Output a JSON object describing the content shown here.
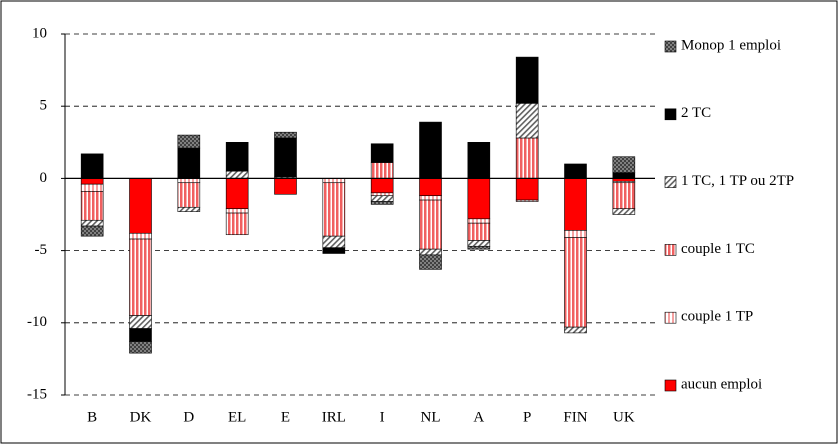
{
  "chart_data": {
    "type": "stacked_bar",
    "categories": [
      "B",
      "DK",
      "D",
      "EL",
      "E",
      "IRL",
      "I",
      "NL",
      "A",
      "P",
      "FIN",
      "UK"
    ],
    "series": [
      {
        "name": "aucun emploi",
        "color": "#ff0000",
        "values": [
          -0.4,
          -3.8,
          0,
          -2.1,
          -1.1,
          0,
          -1.0,
          -1.2,
          -2.8,
          -1.5,
          -3.6,
          -0.2
        ]
      },
      {
        "name": "couple 1 TP",
        "color": "#f4a0a0",
        "values": [
          -0.5,
          -0.4,
          -0.3,
          -0.3,
          0,
          -0.3,
          -0.2,
          -0.3,
          -0.3,
          -0.1,
          -0.5,
          -0.1
        ]
      },
      {
        "name": " couple 1 TC",
        "color": "#f06060",
        "values": [
          -2.0,
          -5.3,
          -1.7,
          -1.5,
          0,
          -3.7,
          1.1,
          -3.4,
          -1.2,
          2.8,
          -6.2,
          -1.8
        ]
      },
      {
        "name": "1 TC, 1 TP ou 2TP",
        "color": "#606060",
        "values": [
          -0.4,
          -0.9,
          -0.3,
          0.5,
          0.1,
          -0.8,
          -0.4,
          -0.4,
          -0.4,
          2.4,
          -0.4,
          -0.4
        ]
      },
      {
        "name": "2 TC",
        "color": "#000000",
        "values": [
          1.7,
          -0.9,
          2.1,
          2.0,
          2.7,
          -0.4,
          1.3,
          3.9,
          2.5,
          3.2,
          1.0,
          0.4
        ]
      },
      {
        "name": "Monop 1 emploi",
        "color": "#808080",
        "values": [
          -0.7,
          -0.8,
          0.9,
          0,
          0.4,
          0,
          -0.2,
          -1.0,
          -0.2,
          0,
          0,
          1.1
        ]
      }
    ],
    "ylim": [
      -15,
      10
    ],
    "yticks": [
      -15,
      -10,
      -5,
      0,
      5,
      10
    ],
    "grid": true,
    "legend": "right"
  }
}
